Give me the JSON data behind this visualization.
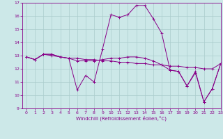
{
  "xlabel": "Windchill (Refroidissement éolien,°C)",
  "bg_color": "#cce8e8",
  "grid_color": "#aacccc",
  "line_color": "#880088",
  "xlim": [
    -0.5,
    23
  ],
  "ylim": [
    9,
    17
  ],
  "yticks": [
    9,
    10,
    11,
    12,
    13,
    14,
    15,
    16,
    17
  ],
  "xticks": [
    0,
    1,
    2,
    3,
    4,
    5,
    6,
    7,
    8,
    9,
    10,
    11,
    12,
    13,
    14,
    15,
    16,
    17,
    18,
    19,
    20,
    21,
    22,
    23
  ],
  "series": [
    [
      12.9,
      12.7,
      13.1,
      13.1,
      12.9,
      12.8,
      10.4,
      11.5,
      11.0,
      13.5,
      16.1,
      15.9,
      16.1,
      16.8,
      16.8,
      15.8,
      14.7,
      11.9,
      11.8,
      10.7,
      11.8,
      9.5,
      10.5,
      12.4
    ],
    [
      12.9,
      12.7,
      13.1,
      13.1,
      12.9,
      12.8,
      12.8,
      12.7,
      12.7,
      12.6,
      12.6,
      12.5,
      12.5,
      12.4,
      12.4,
      12.3,
      12.3,
      12.2,
      12.2,
      12.1,
      12.1,
      12.0,
      12.0,
      12.4
    ],
    [
      12.9,
      12.7,
      13.1,
      13.0,
      12.9,
      12.8,
      12.6,
      12.6,
      12.6,
      12.7,
      12.8,
      12.8,
      12.9,
      12.9,
      12.8,
      12.6,
      12.3,
      11.9,
      11.8,
      10.7,
      11.7,
      9.5,
      10.5,
      12.4
    ]
  ]
}
